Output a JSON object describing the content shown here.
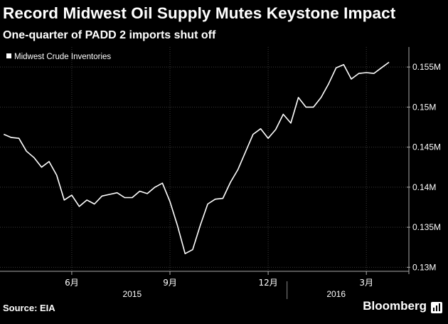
{
  "title": "Record Midwest Oil Supply Mutes Keystone Impact",
  "subtitle": "One-quarter of PADD 2 imports shut off",
  "source": "Source: EIA",
  "brand": "Bloomberg",
  "chart_data": {
    "type": "line",
    "series": [
      {
        "name": "Midwest Crude Inventories",
        "values": [
          0.1466,
          0.1462,
          0.1461,
          0.1445,
          0.1437,
          0.1425,
          0.1432,
          0.1415,
          0.1384,
          0.139,
          0.1376,
          0.1384,
          0.1379,
          0.1389,
          0.1391,
          0.1393,
          0.1387,
          0.1387,
          0.1395,
          0.1392,
          0.14,
          0.1405,
          0.1382,
          0.1352,
          0.1317,
          0.1322,
          0.1352,
          0.1379,
          0.1385,
          0.1386,
          0.1406,
          0.1422,
          0.1444,
          0.1466,
          0.1473,
          0.1461,
          0.1472,
          0.1491,
          0.148,
          0.1512,
          0.15,
          0.15,
          0.1512,
          0.1529,
          0.1549,
          0.1553,
          0.1535,
          0.1542,
          0.1543,
          0.1542,
          0.1549,
          0.1556
        ]
      }
    ],
    "legend": "Midwest Crude Inventories",
    "y_axis": {
      "side": "right",
      "ylim": [
        0.1295,
        0.1575
      ],
      "ticks": [
        0.13,
        0.135,
        0.14,
        0.145,
        0.15,
        0.155
      ],
      "tick_labels": [
        "0.13M",
        "0.135M",
        "0.14M",
        "0.145M",
        "0.15M",
        "0.155M"
      ]
    },
    "x_axis": {
      "month_ticks": [
        {
          "index": 9,
          "label": "6月"
        },
        {
          "index": 22,
          "label": "9月"
        },
        {
          "index": 35,
          "label": "12月"
        },
        {
          "index": 48,
          "label": "3月"
        }
      ],
      "year_ticks": [
        {
          "index": 17,
          "label": "2015"
        },
        {
          "index": 44,
          "label": "2016"
        }
      ],
      "year_divider_index": 37.5,
      "x_range": [
        -0.5,
        52.5
      ]
    }
  }
}
